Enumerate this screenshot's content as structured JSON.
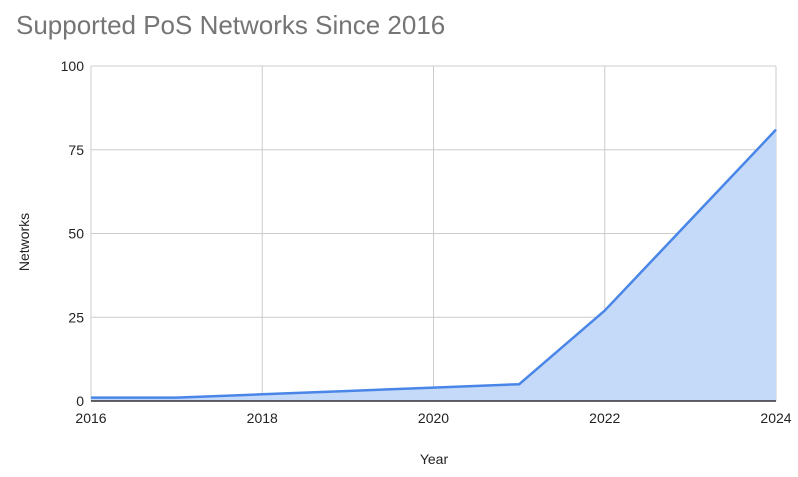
{
  "chart_data": {
    "type": "area",
    "title": "Supported PoS Networks Since 2016",
    "xlabel": "Year",
    "ylabel": "Networks",
    "xlim": [
      2016,
      2024
    ],
    "ylim": [
      0,
      100
    ],
    "x_ticks": [
      2016,
      2018,
      2020,
      2022,
      2024
    ],
    "y_ticks": [
      0,
      25,
      50,
      75,
      100
    ],
    "grid": true,
    "legend": "none",
    "series": [
      {
        "x": [
          2016,
          2017,
          2018,
          2019,
          2020,
          2021,
          2022,
          2023,
          2024
        ],
        "y": [
          1,
          1,
          2,
          3,
          4,
          5,
          27,
          54,
          81
        ],
        "color": "#4a86e8",
        "fill": "#c5d9f8"
      }
    ]
  }
}
